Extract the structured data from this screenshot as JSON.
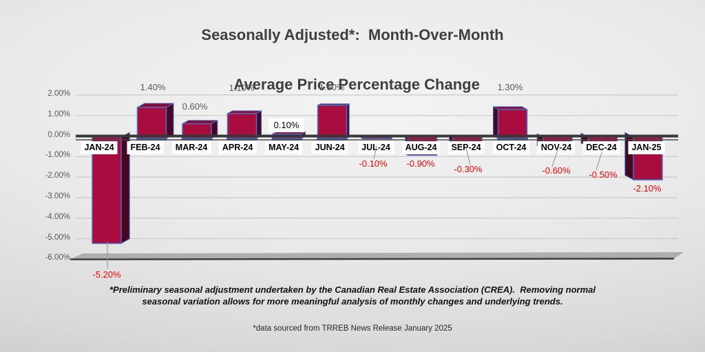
{
  "title": {
    "line1": "Seasonally Adjusted*:  Month-Over-Month",
    "line2": "Average Price Percentage Change"
  },
  "chart_data": {
    "type": "bar",
    "categories": [
      "JAN-24",
      "FEB-24",
      "MAR-24",
      "APR-24",
      "MAY-24",
      "JUN-24",
      "JUL-24",
      "AUG-24",
      "SEP-24",
      "OCT-24",
      "NOV-24",
      "DEC-24",
      "JAN-25"
    ],
    "values": [
      -5.2,
      1.4,
      0.6,
      1.1,
      0.1,
      1.5,
      -0.1,
      -0.9,
      -0.3,
      1.3,
      -0.6,
      -0.5,
      -2.1
    ],
    "data_labels": [
      "-5.20%",
      "1.40%",
      "0.60%",
      "1.10%",
      "0.10%",
      "1.50%",
      "-0.10%",
      "-0.90%",
      "-0.30%",
      "1.30%",
      "-0.60%",
      "-0.50%",
      "-2.10%"
    ],
    "y_tick_labels": [
      "2.00%",
      "1.00%",
      "0.00%",
      "-1.00%",
      "-2.00%",
      "-3.00%",
      "-4.00%",
      "-5.00%",
      "-6.00%"
    ],
    "y_tick_values": [
      2,
      1,
      0,
      -1,
      -2,
      -3,
      -4,
      -5,
      -6
    ],
    "ylim": [
      -6,
      2
    ],
    "grid": true,
    "xlabel": "",
    "ylabel": "",
    "style_3d": true,
    "colors": {
      "bar_front": "#A90D3F",
      "bar_side": "#470720",
      "bar_top": "#8E0B35",
      "bar_outline": "#4472C4",
      "bar_base": "#1F3350",
      "gridline": "#c9c9c9",
      "zero_axis": "#383838",
      "floor_fill": "#aeaeae",
      "floor_edge": "#3d3d3d",
      "leader_line": "#9a9a9a",
      "positive_label": "#595959",
      "negative_label": "#ff0000"
    },
    "boxed_label_category": "MAY-24"
  },
  "footnotes": {
    "crea": "*Preliminary seasonal adjustment undertaken by the Canadian Real Estate Association (CREA).  Removing normal seasonal variation allows for more meaningful analysis of monthly changes and underlying trends.",
    "source": "*data sourced from TRREB News Release January 2025"
  }
}
